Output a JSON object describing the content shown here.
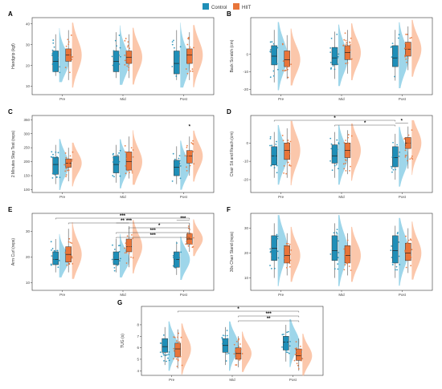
{
  "legend": {
    "items": [
      {
        "label": "Control",
        "color": "#1f8fb8"
      },
      {
        "label": "HIIT",
        "color": "#e8753a"
      }
    ]
  },
  "colors": {
    "control": "#1f8fb8",
    "control_light": "#7ec8e3",
    "hiit": "#e8753a",
    "hiit_light": "#f9b48f"
  },
  "chart_data": [
    {
      "panel": "A",
      "type": "raincloud-box",
      "ylabel": "Handgrip (kgf)",
      "categories": [
        "Pre",
        "Mid",
        "Post"
      ],
      "yticks": [
        10,
        20,
        30,
        40
      ],
      "ylim": [
        6,
        43
      ],
      "series": [
        {
          "name": "Control",
          "box": [
            [
              15,
              17,
              22,
              27,
              35
            ],
            [
              14,
              17,
              22,
              27,
              36
            ],
            [
              13,
              16,
              21,
              27,
              37
            ]
          ]
        },
        {
          "name": "HIIT",
          "box": [
            [
              13,
              22,
              25,
              28,
              37
            ],
            [
              14,
              21,
              24,
              27,
              35
            ],
            [
              13,
              21,
              25,
              28,
              36
            ]
          ]
        }
      ],
      "annotations": []
    },
    {
      "panel": "B",
      "type": "raincloud-box",
      "ylabel": "Back Scratch (cm)",
      "categories": [
        "Pre",
        "Mid",
        "Post"
      ],
      "yticks": [
        -20,
        -10,
        0
      ],
      "ylim": [
        -23,
        21
      ],
      "series": [
        {
          "name": "Control",
          "box": [
            [
              -16,
              -6,
              -1,
              5,
              14
            ],
            [
              -14,
              -6,
              -2,
              4,
              13
            ],
            [
              -15,
              -7,
              -2,
              5,
              14
            ]
          ]
        },
        {
          "name": "HIIT",
          "box": [
            [
              -14,
              -7,
              -3,
              2,
              11
            ],
            [
              -11,
              -3,
              1,
              5,
              14
            ],
            [
              -9,
              -1,
              3,
              7,
              16
            ]
          ]
        }
      ],
      "annotations": []
    },
    {
      "panel": "C",
      "type": "raincloud-box",
      "ylabel": "2 Minutes Step Test (reps)",
      "categories": [
        "Pre",
        "Mid",
        "Post"
      ],
      "yticks": [
        100,
        150,
        200,
        250,
        300,
        350
      ],
      "ylim": [
        90,
        365
      ],
      "series": [
        {
          "name": "Control",
          "box": [
            [
              120,
              155,
              190,
              215,
              260
            ],
            [
              125,
              160,
              190,
              220,
              260
            ],
            [
              120,
              150,
              180,
              205,
              255
            ]
          ]
        },
        {
          "name": "HIIT",
          "box": [
            [
              130,
              180,
              195,
              210,
              250
            ],
            [
              140,
              170,
              200,
              235,
              290
            ],
            [
              150,
              195,
              220,
              240,
              290
            ]
          ]
        }
      ],
      "annotations": [
        {
          "label": "*",
          "category": "Post",
          "y": 320
        }
      ]
    },
    {
      "panel": "D",
      "type": "raincloud-box",
      "ylabel": "Chair Sit and Reach (cm)",
      "categories": [
        "Pre",
        "Mid",
        "Post"
      ],
      "yticks": [
        -20,
        -10,
        0
      ],
      "ylim": [
        -27,
        15
      ],
      "series": [
        {
          "name": "Control",
          "box": [
            [
              -19,
              -12,
              -7,
              -2,
              6
            ],
            [
              -19,
              -11,
              -7,
              -1,
              6
            ],
            [
              -20,
              -13,
              -8,
              -2,
              5
            ]
          ]
        },
        {
          "name": "HIIT",
          "box": [
            [
              -19,
              -9,
              -4,
              0,
              8
            ],
            [
              -17,
              -8,
              -4,
              0,
              7
            ],
            [
              -14,
              -3,
              0,
              3,
              9
            ]
          ]
        }
      ],
      "annotations": [
        {
          "label": "*",
          "from": "Pre-Control",
          "to": "Post-Control"
        },
        {
          "label": "*",
          "from": "Mid-Control",
          "to": "Post-Control"
        },
        {
          "label": "*",
          "category": "Post",
          "within": true
        }
      ]
    },
    {
      "panel": "E",
      "type": "raincloud-box",
      "ylabel": "Arm Curl (reps)",
      "categories": [
        "Pre",
        "Mid",
        "Post"
      ],
      "yticks": [
        10,
        20,
        30
      ],
      "ylim": [
        7,
        37
      ],
      "series": [
        {
          "name": "Control",
          "box": [
            [
              14,
              17,
              19,
              22,
              27
            ],
            [
              14,
              17,
              19,
              22,
              27
            ],
            [
              13,
              16,
              19,
              22,
              26
            ]
          ]
        },
        {
          "name": "HIIT",
          "box": [
            [
              14,
              18,
              21,
              24,
              31
            ],
            [
              16,
              22,
              24,
              27,
              32
            ],
            [
              22,
              25,
              27,
              29,
              33
            ]
          ]
        }
      ],
      "annotations": [
        {
          "label": "***",
          "from": "Pre-Control",
          "to": "Post-HIIT"
        },
        {
          "label": "***",
          "from": "Pre-HIIT",
          "to": "Post-HIIT"
        },
        {
          "label": "*",
          "from": "Mid-HIIT",
          "to": "Post-HIIT"
        },
        {
          "label": "***",
          "from": "Mid-Control",
          "to": "Post-HIIT"
        },
        {
          "label": "***",
          "from": "Mid-Control",
          "to": "Post-HIIT"
        },
        {
          "label": "**",
          "category": "Mid",
          "within": true
        },
        {
          "label": "***",
          "category": "Post",
          "within": true
        }
      ]
    },
    {
      "panel": "F",
      "type": "raincloud-box",
      "ylabel": "30s Chair Stand (reps)",
      "categories": [
        "Pre",
        "Mid",
        "Post"
      ],
      "yticks": [
        10,
        20,
        30
      ],
      "ylim": [
        5,
        36
      ],
      "series": [
        {
          "name": "Control",
          "box": [
            [
              10,
              17,
              22,
              27,
              32
            ],
            [
              10,
              17,
              21,
              27,
              32
            ],
            [
              10,
              16,
              21,
              27,
              31
            ]
          ]
        },
        {
          "name": "HIIT",
          "box": [
            [
              11,
              16,
              19,
              23,
              28
            ],
            [
              11,
              16,
              19,
              23,
              28
            ],
            [
              12,
              17,
              20,
              24,
              30
            ]
          ]
        }
      ],
      "annotations": []
    },
    {
      "panel": "G",
      "type": "raincloud-box",
      "ylabel": "TUG (s)",
      "categories": [
        "Pre",
        "Mid",
        "Post"
      ],
      "yticks": [
        4,
        5,
        6,
        7,
        8
      ],
      "ylim": [
        3.6,
        9.6
      ],
      "series": [
        {
          "name": "Control",
          "box": [
            [
              4.5,
              5.6,
              6.1,
              6.8,
              7.8
            ],
            [
              4.5,
              5.6,
              6.2,
              6.8,
              7.8
            ],
            [
              4.8,
              5.8,
              6.5,
              7.0,
              8.0
            ]
          ]
        },
        {
          "name": "HIIT",
          "box": [
            [
              4.2,
              5.2,
              5.9,
              6.4,
              7.6
            ],
            [
              4.3,
              5.0,
              5.5,
              6.0,
              7.0
            ],
            [
              4.0,
              4.9,
              5.3,
              5.9,
              6.8
            ]
          ]
        }
      ],
      "annotations": [
        {
          "label": "*",
          "from": "Pre-HIIT",
          "to": "Post-HIIT"
        },
        {
          "label": "***",
          "from": "Mid-HIIT",
          "to": "Post-HIIT"
        },
        {
          "label": "**",
          "from": "Mid-HIIT",
          "to": "Post-HIIT"
        }
      ]
    }
  ]
}
